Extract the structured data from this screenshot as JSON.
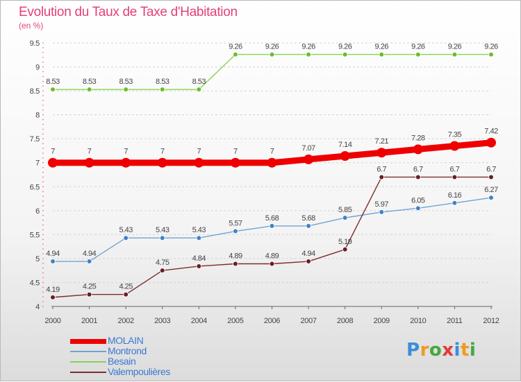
{
  "chart_data": {
    "type": "line",
    "title": "Evolution du Taux de Taxe d'Habitation",
    "unit_label": "(en %)",
    "x": [
      "2000",
      "2001",
      "2002",
      "2003",
      "2004",
      "2005",
      "2006",
      "2007",
      "2008",
      "2009",
      "2010",
      "2011",
      "2012"
    ],
    "ylim": [
      4,
      9.5
    ],
    "y_ticks": [
      "4",
      "4.5",
      "5",
      "5.5",
      "6",
      "6.5",
      "7",
      "7.5",
      "8",
      "8.5",
      "9",
      "9.5"
    ],
    "grid": "horizontal dashed",
    "legend_position": "bottom-left",
    "series": [
      {
        "name": "Besain",
        "color": "#88d250",
        "marker_color": "#6cbc30",
        "values": [
          8.53,
          8.53,
          8.53,
          8.53,
          8.53,
          9.26,
          9.26,
          9.26,
          9.26,
          9.26,
          9.26,
          9.26,
          9.26
        ],
        "labels": [
          "8.53",
          "8.53",
          "8.53",
          "8.53",
          "8.53",
          "9.26",
          "9.26",
          "9.26",
          "9.26",
          "9.26",
          "9.26",
          "9.26",
          "9.26"
        ]
      },
      {
        "name": "Montrond",
        "color": "#6ea3d6",
        "marker_color": "#3f82c6",
        "values": [
          4.94,
          4.94,
          5.43,
          5.43,
          5.43,
          5.57,
          5.68,
          5.68,
          5.85,
          5.97,
          6.05,
          6.16,
          6.27
        ],
        "labels": [
          "4.94",
          "4.94",
          "5.43",
          "5.43",
          "5.43",
          "5.57",
          "5.68",
          "5.68",
          "5.85",
          "5.97",
          "6.05",
          "6.16",
          "6.27"
        ]
      },
      {
        "name": "Valempoulières",
        "color": "#7a2c30",
        "marker_color": "#6a1e22",
        "values": [
          4.19,
          4.25,
          4.25,
          4.75,
          4.84,
          4.89,
          4.89,
          4.94,
          5.19,
          6.7,
          6.7,
          6.7,
          6.7
        ],
        "labels": [
          "4.19",
          "4.25",
          "4.25",
          "4.75",
          "4.84",
          "4.89",
          "4.89",
          "4.94",
          "5.19",
          "6.7",
          "6.7",
          "6.7",
          "6.7"
        ]
      },
      {
        "name": "MOLAIN",
        "color": "#ee0000",
        "marker_color": "#ee0000",
        "emphasized": true,
        "values": [
          7,
          7,
          7,
          7,
          7,
          7,
          7,
          7.07,
          7.14,
          7.21,
          7.28,
          7.35,
          7.42
        ],
        "labels": [
          "7",
          "7",
          "7",
          "7",
          "7",
          "7",
          "7",
          "7.07",
          "7.14",
          "7.21",
          "7.28",
          "7.35",
          "7.42"
        ]
      }
    ]
  },
  "legend": {
    "items": [
      {
        "label": "MOLAIN",
        "color": "#ee0000"
      },
      {
        "label": "Montrond",
        "color": "#6ea3d6"
      },
      {
        "label": "Besain",
        "color": "#88d250"
      },
      {
        "label": "Valempoulières",
        "color": "#7a2c30"
      }
    ]
  },
  "brand": {
    "letters": [
      "P",
      "r",
      "o",
      "x",
      "i",
      "t",
      "i"
    ],
    "colors": [
      "#3c8dd8",
      "#f09a20",
      "#43a83c",
      "#e23a3a",
      "#3c8dd8",
      "#f09a20",
      "#43a83c"
    ]
  }
}
